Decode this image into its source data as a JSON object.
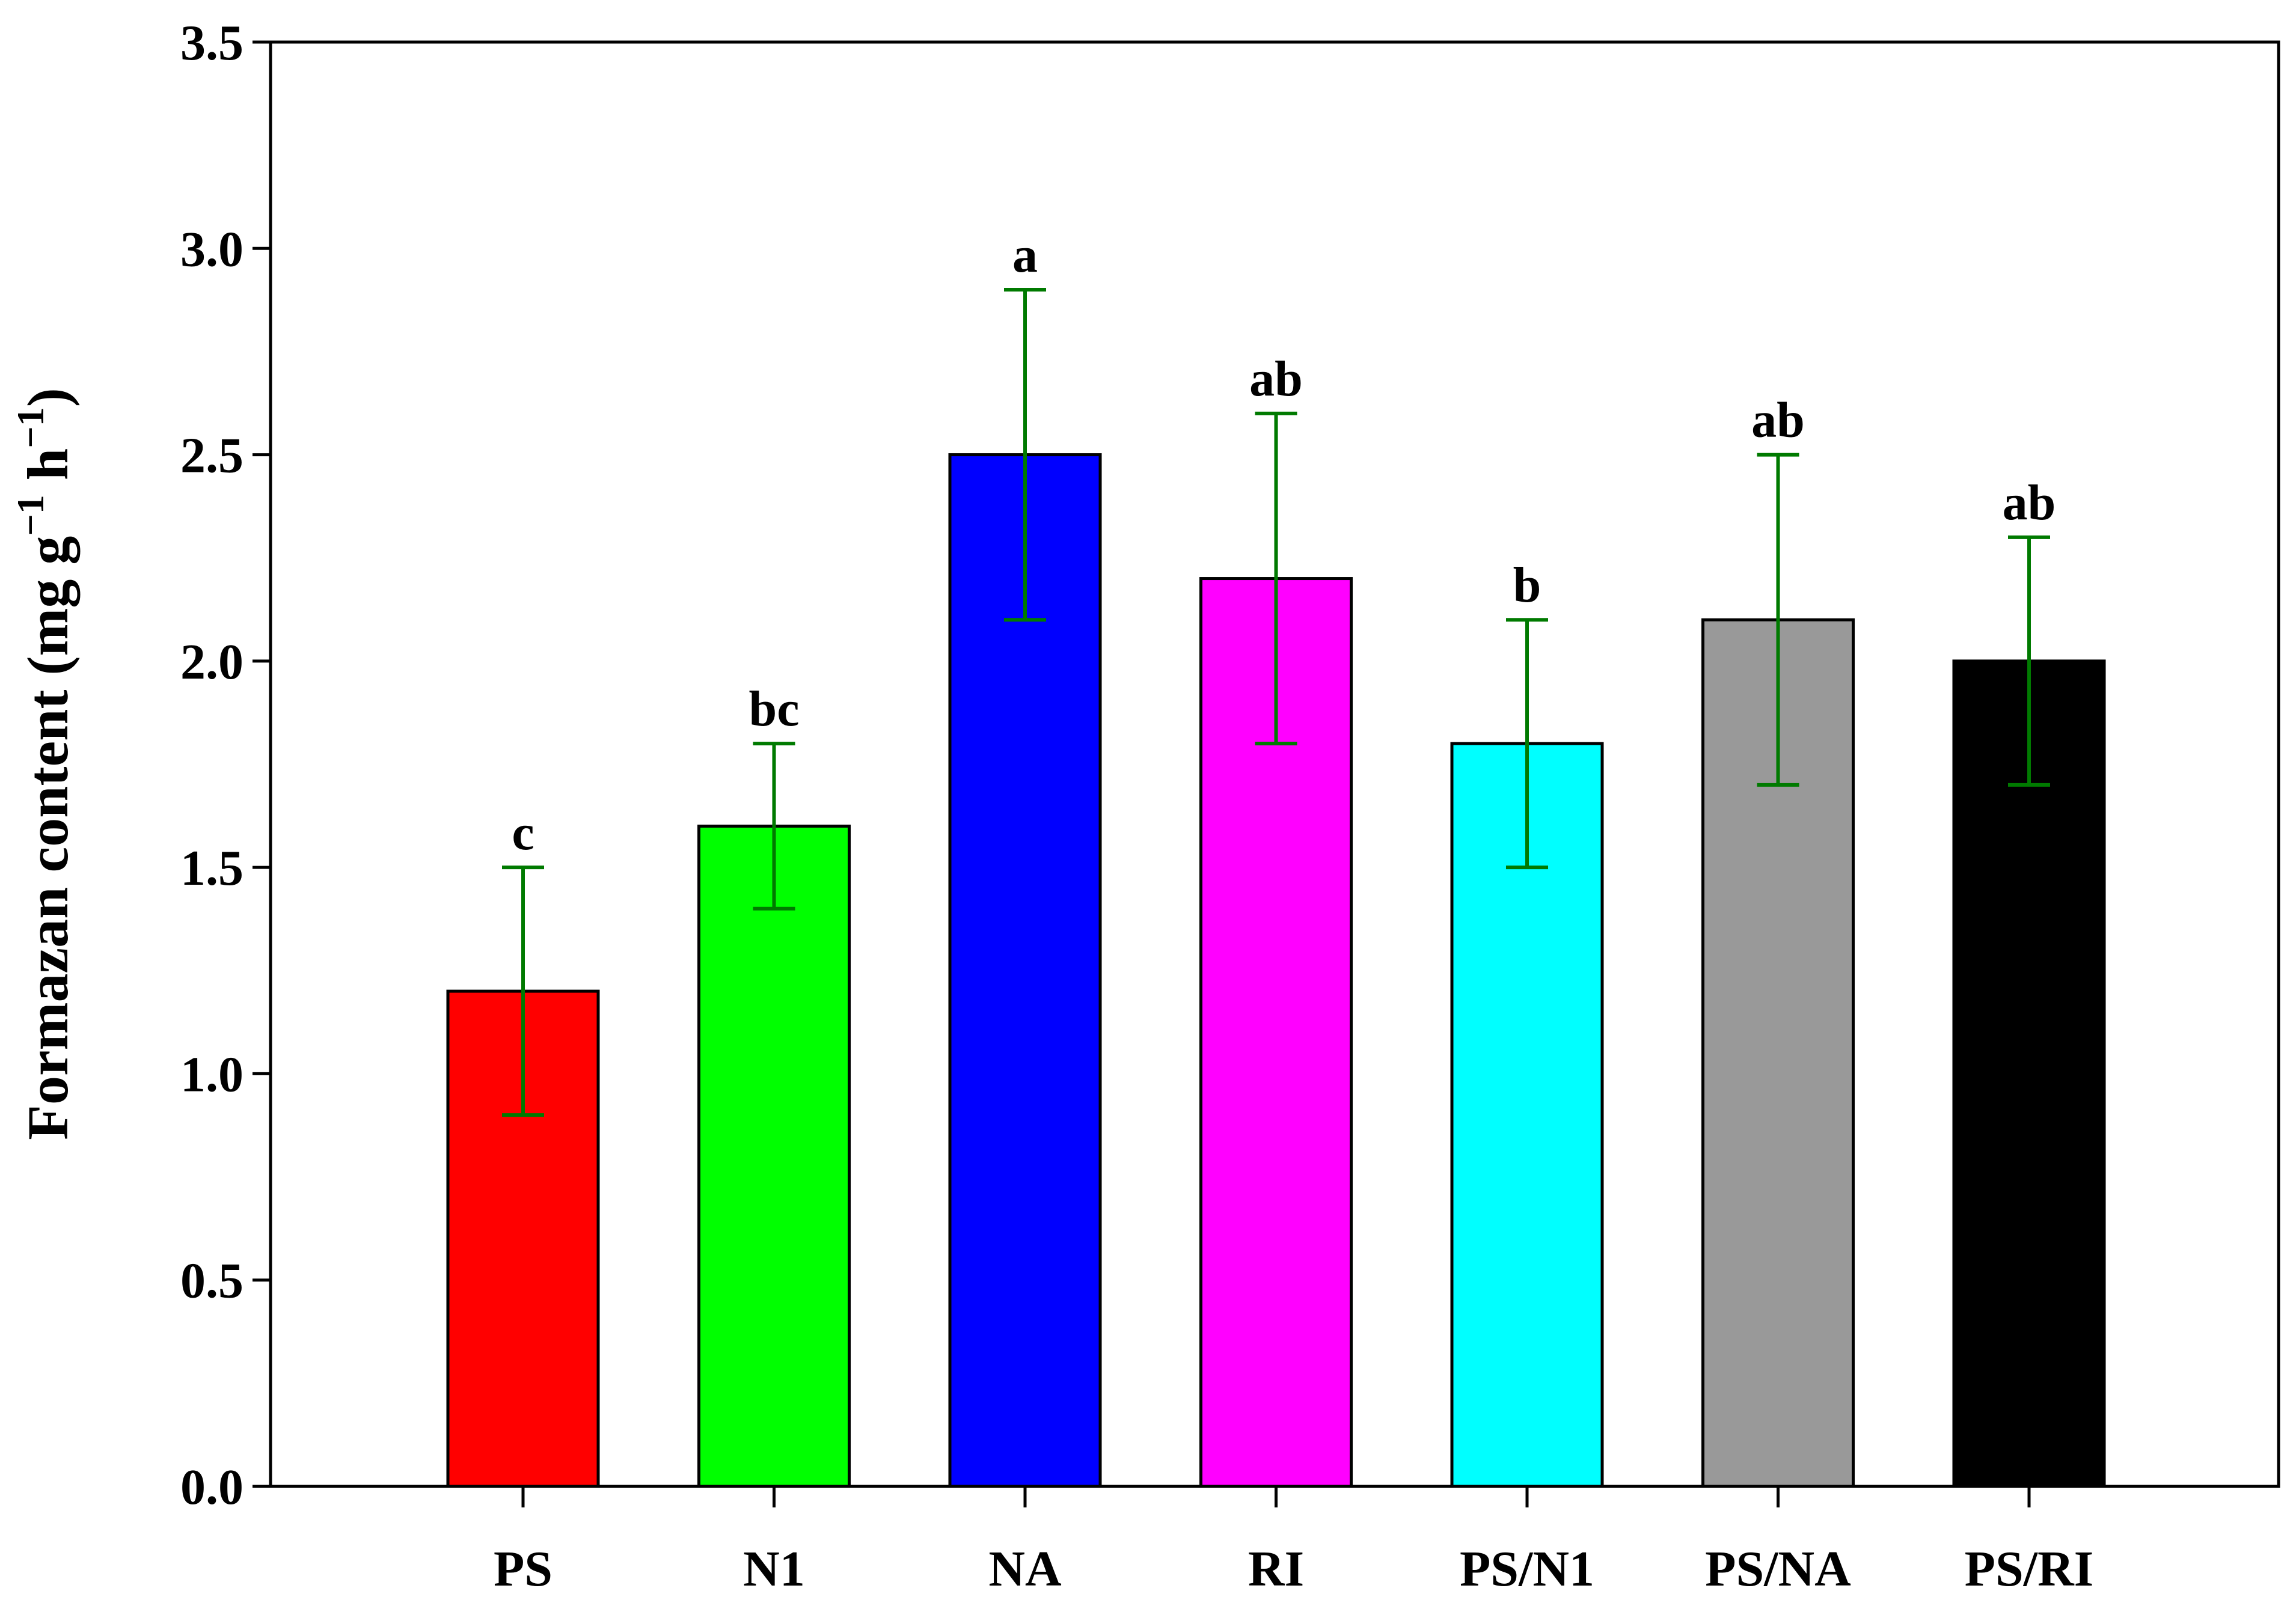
{
  "chart_data": {
    "type": "bar",
    "title": "",
    "xlabel": "",
    "ylabel": {
      "main": "Formazan content (mg g",
      "exp1": "−1",
      "mid": " h",
      "exp2": "−1",
      "close": ")"
    },
    "ylim": [
      0,
      3.5
    ],
    "yticks": [
      "0.0",
      "0.5",
      "1.0",
      "1.5",
      "2.0",
      "2.5",
      "3.0",
      "3.5"
    ],
    "categories": [
      "PS",
      "N1",
      "NA",
      "RI",
      "PS/N1",
      "PS/NA",
      "PS/RI"
    ],
    "values": [
      1.2,
      1.6,
      2.5,
      2.2,
      1.8,
      2.1,
      2.0
    ],
    "errors": [
      0.3,
      0.2,
      0.4,
      0.4,
      0.3,
      0.4,
      0.3
    ],
    "significance": [
      "c",
      "bc",
      "a",
      "ab",
      "b",
      "ab",
      "ab"
    ],
    "bar_colors": [
      "#ff0000",
      "#00ff00",
      "#0000ff",
      "#ff00ff",
      "#00ffff",
      "#999999",
      "#000000"
    ],
    "error_bar_color": "#007a00",
    "grid": false,
    "legend": "none"
  }
}
